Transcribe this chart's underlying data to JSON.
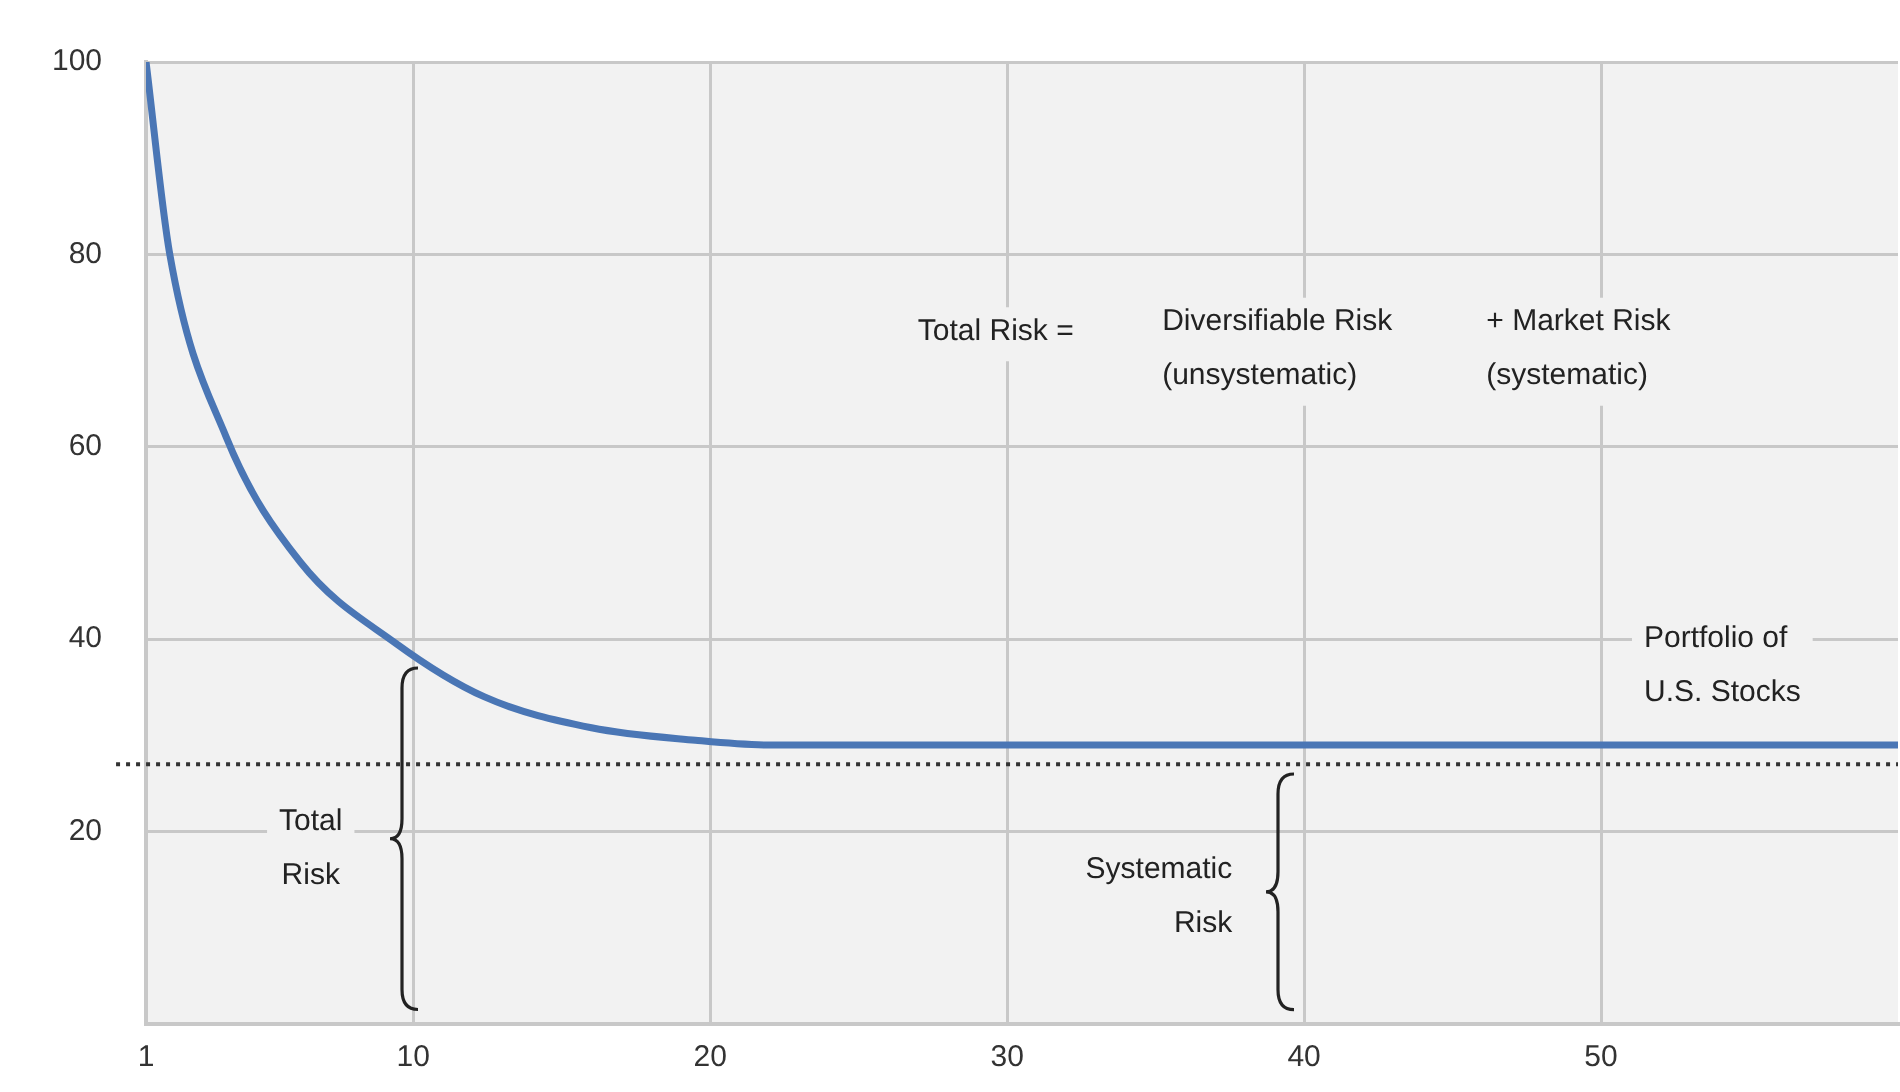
{
  "chart_data": {
    "type": "line",
    "x": [
      1,
      1.8,
      3.7,
      6.2,
      9.4,
      12.4,
      16,
      19.5,
      22,
      30,
      40,
      50,
      60
    ],
    "series": [
      {
        "color": "#4a76b5",
        "values": [
          100,
          80,
          61,
          48,
          39.6,
          34,
          30.8,
          29.5,
          29,
          29,
          29,
          29,
          29
        ]
      }
    ],
    "xlim": [
      1,
      60
    ],
    "xticks": [
      1,
      10,
      20,
      30,
      40,
      50
    ],
    "ylim": [
      0,
      100
    ],
    "yticks": [
      20,
      40,
      60,
      80,
      100
    ],
    "grid": true,
    "legend": false,
    "marker": "none",
    "line_style": "solid",
    "ref_lines": [
      {
        "axis": "y",
        "value": 27,
        "color": "#333333",
        "line_style": "dotted"
      }
    ],
    "annotations": [
      "Total Risk =",
      "Diversifiable Risk\n(unsystematic)",
      "+ Market Risk\n(systematic)",
      "Portfolio of\nU.S. Stocks",
      "Total\nRisk",
      "Systematic\nRisk"
    ]
  }
}
